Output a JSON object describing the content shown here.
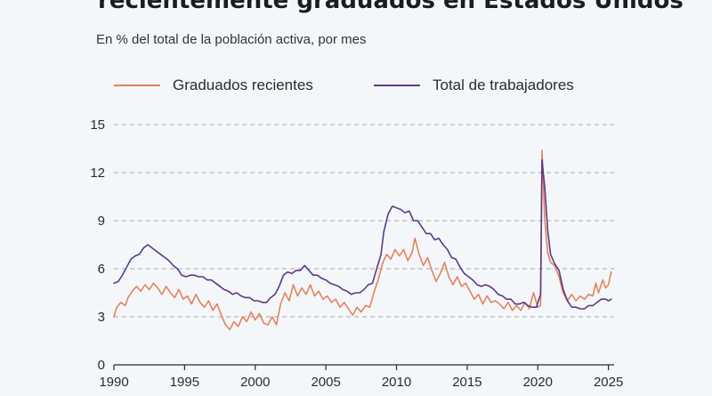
{
  "header": {
    "title": "recientemente graduados en Estados Unidos",
    "subtitle": "En % del total de la población activa, por mes"
  },
  "colors": {
    "graduados": "#e8805e",
    "total": "#5e3a86",
    "grid": "#a6a6a6",
    "axis": "#2b2b2b",
    "background": "#f3f7f9"
  },
  "chart_data": {
    "type": "line",
    "title": "recientemente graduados en Estados Unidos",
    "subtitle": "En % del total de la población activa, por mes",
    "xlabel": "",
    "ylabel": "",
    "xlim": [
      1990,
      2025.4
    ],
    "ylim": [
      0,
      15
    ],
    "x_ticks": [
      1990,
      1995,
      2000,
      2005,
      2010,
      2015,
      2020,
      2025
    ],
    "y_ticks": [
      0,
      3,
      6,
      9,
      12,
      15
    ],
    "grid": "horizontal dashed",
    "legend_position": "top",
    "series": [
      {
        "name": "Graduados recientes",
        "color": "#e8805e",
        "points": [
          [
            1990.0,
            3.0
          ],
          [
            1990.2,
            3.6
          ],
          [
            1990.5,
            3.9
          ],
          [
            1990.8,
            3.7
          ],
          [
            1991.0,
            4.2
          ],
          [
            1991.3,
            4.6
          ],
          [
            1991.6,
            4.9
          ],
          [
            1991.9,
            4.6
          ],
          [
            1992.2,
            5.0
          ],
          [
            1992.5,
            4.7
          ],
          [
            1992.8,
            5.1
          ],
          [
            1993.1,
            4.8
          ],
          [
            1993.4,
            4.4
          ],
          [
            1993.7,
            4.9
          ],
          [
            1994.0,
            4.5
          ],
          [
            1994.3,
            4.2
          ],
          [
            1994.6,
            4.7
          ],
          [
            1994.9,
            4.1
          ],
          [
            1995.2,
            4.3
          ],
          [
            1995.5,
            3.8
          ],
          [
            1995.8,
            4.4
          ],
          [
            1996.1,
            3.9
          ],
          [
            1996.4,
            3.6
          ],
          [
            1996.7,
            4.0
          ],
          [
            1997.0,
            3.4
          ],
          [
            1997.3,
            3.8
          ],
          [
            1997.6,
            3.1
          ],
          [
            1997.9,
            2.5
          ],
          [
            1998.2,
            2.2
          ],
          [
            1998.5,
            2.7
          ],
          [
            1998.8,
            2.4
          ],
          [
            1999.1,
            3.0
          ],
          [
            1999.4,
            2.7
          ],
          [
            1999.7,
            3.3
          ],
          [
            2000.0,
            2.8
          ],
          [
            2000.3,
            3.2
          ],
          [
            2000.6,
            2.6
          ],
          [
            2000.9,
            2.5
          ],
          [
            2001.2,
            3.0
          ],
          [
            2001.5,
            2.5
          ],
          [
            2001.8,
            3.8
          ],
          [
            2002.1,
            4.5
          ],
          [
            2002.4,
            4.0
          ],
          [
            2002.7,
            5.0
          ],
          [
            2003.0,
            4.3
          ],
          [
            2003.3,
            4.8
          ],
          [
            2003.6,
            4.4
          ],
          [
            2003.9,
            5.0
          ],
          [
            2004.2,
            4.3
          ],
          [
            2004.5,
            4.6
          ],
          [
            2004.8,
            4.1
          ],
          [
            2005.1,
            4.3
          ],
          [
            2005.4,
            3.9
          ],
          [
            2005.7,
            4.1
          ],
          [
            2006.0,
            3.6
          ],
          [
            2006.3,
            3.9
          ],
          [
            2006.6,
            3.5
          ],
          [
            2006.9,
            3.1
          ],
          [
            2007.2,
            3.6
          ],
          [
            2007.5,
            3.3
          ],
          [
            2007.8,
            3.7
          ],
          [
            2008.1,
            3.6
          ],
          [
            2008.4,
            4.5
          ],
          [
            2008.7,
            5.3
          ],
          [
            2009.0,
            6.3
          ],
          [
            2009.3,
            6.9
          ],
          [
            2009.6,
            6.6
          ],
          [
            2009.9,
            7.2
          ],
          [
            2010.2,
            6.8
          ],
          [
            2010.5,
            7.2
          ],
          [
            2010.8,
            6.5
          ],
          [
            2011.1,
            7.0
          ],
          [
            2011.3,
            7.9
          ],
          [
            2011.6,
            6.9
          ],
          [
            2011.9,
            6.2
          ],
          [
            2012.2,
            6.7
          ],
          [
            2012.5,
            5.9
          ],
          [
            2012.8,
            5.2
          ],
          [
            2013.1,
            5.7
          ],
          [
            2013.4,
            6.4
          ],
          [
            2013.7,
            5.5
          ],
          [
            2014.0,
            5.0
          ],
          [
            2014.3,
            5.5
          ],
          [
            2014.6,
            4.9
          ],
          [
            2014.9,
            5.1
          ],
          [
            2015.2,
            4.6
          ],
          [
            2015.5,
            4.1
          ],
          [
            2015.8,
            4.4
          ],
          [
            2016.1,
            3.8
          ],
          [
            2016.4,
            4.3
          ],
          [
            2016.7,
            3.9
          ],
          [
            2017.0,
            4.0
          ],
          [
            2017.3,
            3.8
          ],
          [
            2017.6,
            3.5
          ],
          [
            2017.9,
            3.9
          ],
          [
            2018.2,
            3.4
          ],
          [
            2018.5,
            3.7
          ],
          [
            2018.8,
            3.4
          ],
          [
            2019.1,
            3.9
          ],
          [
            2019.4,
            3.5
          ],
          [
            2019.7,
            4.5
          ],
          [
            2020.0,
            3.6
          ],
          [
            2020.2,
            3.7
          ],
          [
            2020.3,
            13.4
          ],
          [
            2020.5,
            9.0
          ],
          [
            2020.7,
            7.0
          ],
          [
            2020.9,
            6.4
          ],
          [
            2021.2,
            6.2
          ],
          [
            2021.5,
            5.5
          ],
          [
            2021.8,
            4.5
          ],
          [
            2022.1,
            4.0
          ],
          [
            2022.4,
            4.4
          ],
          [
            2022.7,
            4.0
          ],
          [
            2023.0,
            4.3
          ],
          [
            2023.3,
            4.1
          ],
          [
            2023.6,
            4.4
          ],
          [
            2023.9,
            4.3
          ],
          [
            2024.1,
            5.1
          ],
          [
            2024.3,
            4.5
          ],
          [
            2024.6,
            5.3
          ],
          [
            2024.8,
            4.8
          ],
          [
            2025.0,
            5.0
          ],
          [
            2025.2,
            5.8
          ]
        ]
      },
      {
        "name": "Total de trabajadores",
        "color": "#5e3a86",
        "points": [
          [
            1990.0,
            5.1
          ],
          [
            1990.3,
            5.2
          ],
          [
            1990.6,
            5.6
          ],
          [
            1990.9,
            6.1
          ],
          [
            1991.2,
            6.6
          ],
          [
            1991.5,
            6.8
          ],
          [
            1991.8,
            6.9
          ],
          [
            1992.1,
            7.3
          ],
          [
            1992.4,
            7.5
          ],
          [
            1992.7,
            7.3
          ],
          [
            1993.0,
            7.1
          ],
          [
            1993.3,
            6.9
          ],
          [
            1993.6,
            6.7
          ],
          [
            1993.9,
            6.5
          ],
          [
            1994.2,
            6.2
          ],
          [
            1994.5,
            6.0
          ],
          [
            1994.8,
            5.6
          ],
          [
            1995.1,
            5.5
          ],
          [
            1995.4,
            5.6
          ],
          [
            1995.7,
            5.6
          ],
          [
            1996.0,
            5.5
          ],
          [
            1996.3,
            5.5
          ],
          [
            1996.6,
            5.3
          ],
          [
            1996.9,
            5.3
          ],
          [
            1997.2,
            5.1
          ],
          [
            1997.5,
            4.9
          ],
          [
            1997.8,
            4.7
          ],
          [
            1998.1,
            4.6
          ],
          [
            1998.4,
            4.4
          ],
          [
            1998.7,
            4.5
          ],
          [
            1999.0,
            4.3
          ],
          [
            1999.3,
            4.2
          ],
          [
            1999.6,
            4.2
          ],
          [
            1999.9,
            4.0
          ],
          [
            2000.2,
            4.0
          ],
          [
            2000.5,
            3.9
          ],
          [
            2000.8,
            3.9
          ],
          [
            2001.1,
            4.2
          ],
          [
            2001.4,
            4.4
          ],
          [
            2001.7,
            4.9
          ],
          [
            2002.0,
            5.6
          ],
          [
            2002.3,
            5.8
          ],
          [
            2002.6,
            5.7
          ],
          [
            2002.9,
            5.9
          ],
          [
            2003.2,
            5.9
          ],
          [
            2003.5,
            6.2
          ],
          [
            2003.8,
            5.9
          ],
          [
            2004.1,
            5.6
          ],
          [
            2004.4,
            5.6
          ],
          [
            2004.7,
            5.4
          ],
          [
            2005.0,
            5.3
          ],
          [
            2005.3,
            5.1
          ],
          [
            2005.6,
            5.0
          ],
          [
            2005.9,
            4.9
          ],
          [
            2006.2,
            4.7
          ],
          [
            2006.5,
            4.6
          ],
          [
            2006.8,
            4.4
          ],
          [
            2007.1,
            4.5
          ],
          [
            2007.4,
            4.5
          ],
          [
            2007.7,
            4.7
          ],
          [
            2008.0,
            5.0
          ],
          [
            2008.3,
            5.1
          ],
          [
            2008.6,
            6.0
          ],
          [
            2008.9,
            6.9
          ],
          [
            2009.1,
            8.3
          ],
          [
            2009.4,
            9.4
          ],
          [
            2009.7,
            9.9
          ],
          [
            2010.0,
            9.8
          ],
          [
            2010.3,
            9.7
          ],
          [
            2010.6,
            9.5
          ],
          [
            2010.9,
            9.6
          ],
          [
            2011.2,
            9.0
          ],
          [
            2011.5,
            9.0
          ],
          [
            2011.8,
            8.6
          ],
          [
            2012.1,
            8.2
          ],
          [
            2012.4,
            8.2
          ],
          [
            2012.7,
            7.8
          ],
          [
            2013.0,
            7.9
          ],
          [
            2013.3,
            7.5
          ],
          [
            2013.6,
            7.2
          ],
          [
            2013.9,
            6.7
          ],
          [
            2014.2,
            6.6
          ],
          [
            2014.5,
            6.1
          ],
          [
            2014.8,
            5.7
          ],
          [
            2015.1,
            5.5
          ],
          [
            2015.4,
            5.3
          ],
          [
            2015.7,
            5.0
          ],
          [
            2016.0,
            4.9
          ],
          [
            2016.3,
            5.0
          ],
          [
            2016.6,
            4.9
          ],
          [
            2016.9,
            4.7
          ],
          [
            2017.2,
            4.4
          ],
          [
            2017.5,
            4.3
          ],
          [
            2017.8,
            4.1
          ],
          [
            2018.1,
            4.1
          ],
          [
            2018.4,
            3.8
          ],
          [
            2018.7,
            3.8
          ],
          [
            2019.0,
            3.9
          ],
          [
            2019.3,
            3.7
          ],
          [
            2019.6,
            3.6
          ],
          [
            2019.9,
            3.6
          ],
          [
            2020.2,
            4.4
          ],
          [
            2020.3,
            12.8
          ],
          [
            2020.5,
            11.0
          ],
          [
            2020.7,
            8.4
          ],
          [
            2020.9,
            6.9
          ],
          [
            2021.2,
            6.3
          ],
          [
            2021.5,
            5.9
          ],
          [
            2021.8,
            4.7
          ],
          [
            2022.1,
            4.0
          ],
          [
            2022.4,
            3.6
          ],
          [
            2022.7,
            3.6
          ],
          [
            2023.0,
            3.5
          ],
          [
            2023.3,
            3.5
          ],
          [
            2023.6,
            3.7
          ],
          [
            2023.9,
            3.7
          ],
          [
            2024.2,
            3.9
          ],
          [
            2024.5,
            4.1
          ],
          [
            2024.8,
            4.1
          ],
          [
            2025.0,
            4.0
          ],
          [
            2025.2,
            4.1
          ]
        ]
      }
    ]
  }
}
